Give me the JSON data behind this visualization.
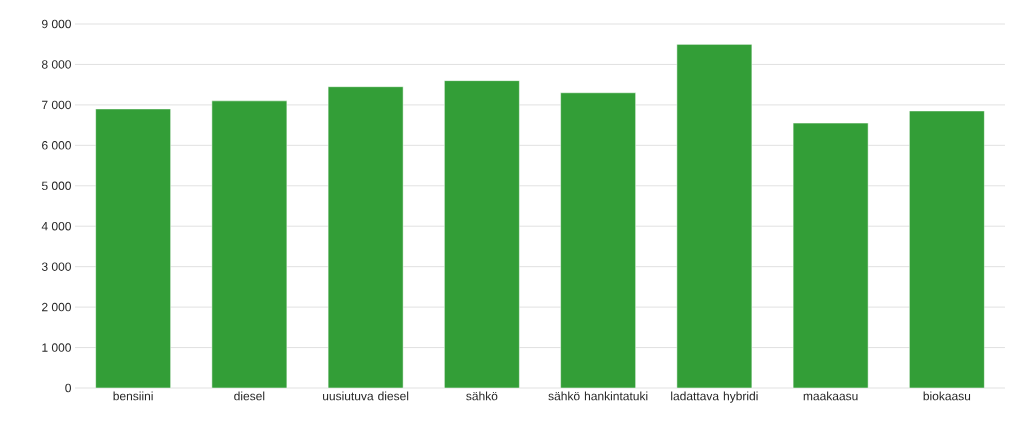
{
  "chart_data": {
    "type": "bar",
    "categories": [
      "bensiini",
      "diesel",
      "uusiutuva diesel",
      "sähkö",
      "sähkö hankintatuki",
      "ladattava hybridi",
      "maakaasu",
      "biokaasu"
    ],
    "values": [
      6900,
      7100,
      7450,
      7600,
      7300,
      8500,
      6550,
      6850
    ],
    "color": "#339e37",
    "ylim": [
      0,
      9000
    ],
    "yticks": [
      0,
      {
        "value": 1000,
        "label": "1 000"
      },
      {
        "value": 2000,
        "label": "2 000"
      },
      {
        "value": 3000,
        "label": "3 000"
      },
      {
        "value": 4000,
        "label": "4 000"
      },
      {
        "value": 5000,
        "label": "5 000"
      },
      {
        "value": 6000,
        "label": "6 000"
      },
      {
        "value": 7000,
        "label": "7 000"
      },
      {
        "value": 8000,
        "label": "8 000"
      },
      {
        "value": 9000,
        "label": "9 000"
      }
    ],
    "grid": "y"
  }
}
